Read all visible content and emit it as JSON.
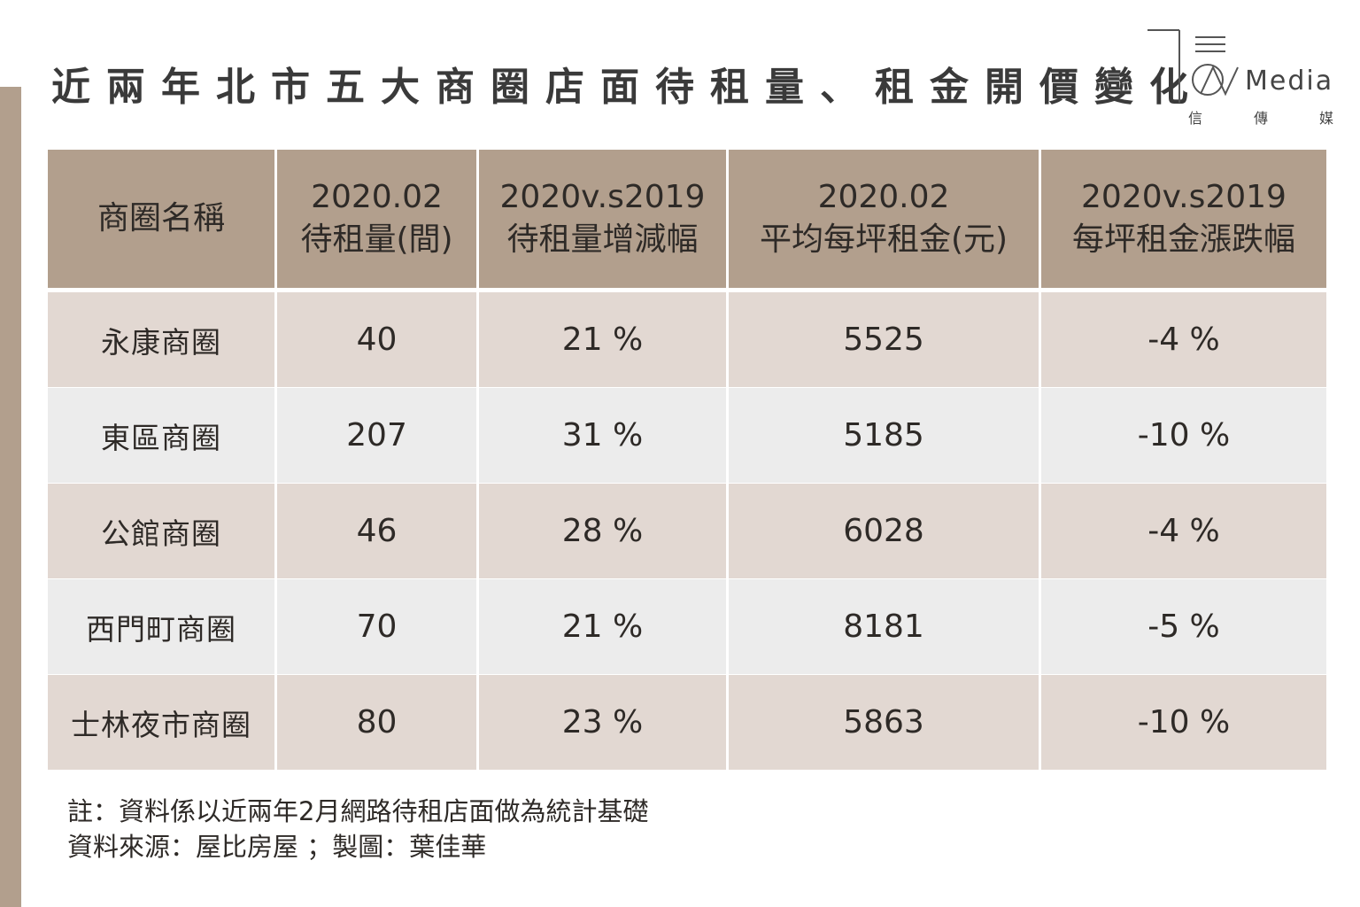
{
  "title": "近兩年北市五大商圈店面待租量、租金開價變化",
  "logo": {
    "word": "Media",
    "sub": [
      "信",
      "傳",
      "媒"
    ]
  },
  "colors": {
    "header_bg": "#b29f8d",
    "row_odd": "#e2d8d2",
    "row_even": "#ececec",
    "text": "#2e2a27"
  },
  "chart_data": {
    "type": "table",
    "title": "近兩年北市五大商圈店面待租量、租金開價變化",
    "columns": [
      {
        "line1": "商圈名稱",
        "line2": ""
      },
      {
        "line1": "2020.02",
        "line2": "待租量(間)"
      },
      {
        "line1": "2020v.s2019",
        "line2": "待租量增減幅"
      },
      {
        "line1": "2020.02",
        "line2": "平均每坪租金(元)"
      },
      {
        "line1": "2020v.s2019",
        "line2": "每坪租金漲跌幅"
      }
    ],
    "rows": [
      {
        "name": "永康商圈",
        "vacancy": "40",
        "vacancy_change": "21 %",
        "rent": "5525",
        "rent_change": "-4 %"
      },
      {
        "name": "東區商圈",
        "vacancy": "207",
        "vacancy_change": "31 %",
        "rent": "5185",
        "rent_change": "-10 %"
      },
      {
        "name": "公館商圈",
        "vacancy": "46",
        "vacancy_change": "28 %",
        "rent": "6028",
        "rent_change": "-4 %"
      },
      {
        "name": "西門町商圈",
        "vacancy": "70",
        "vacancy_change": "21 %",
        "rent": "8181",
        "rent_change": "-5 %"
      },
      {
        "name": "士林夜市商圈",
        "vacancy": "80",
        "vacancy_change": "23 %",
        "rent": "5863",
        "rent_change": "-10 %"
      }
    ]
  },
  "notes": {
    "line1": "註：資料係以近兩年2月網路待租店面做為統計基礎",
    "line2": "資料來源：屋比房屋 ；製圖：葉佳華"
  }
}
